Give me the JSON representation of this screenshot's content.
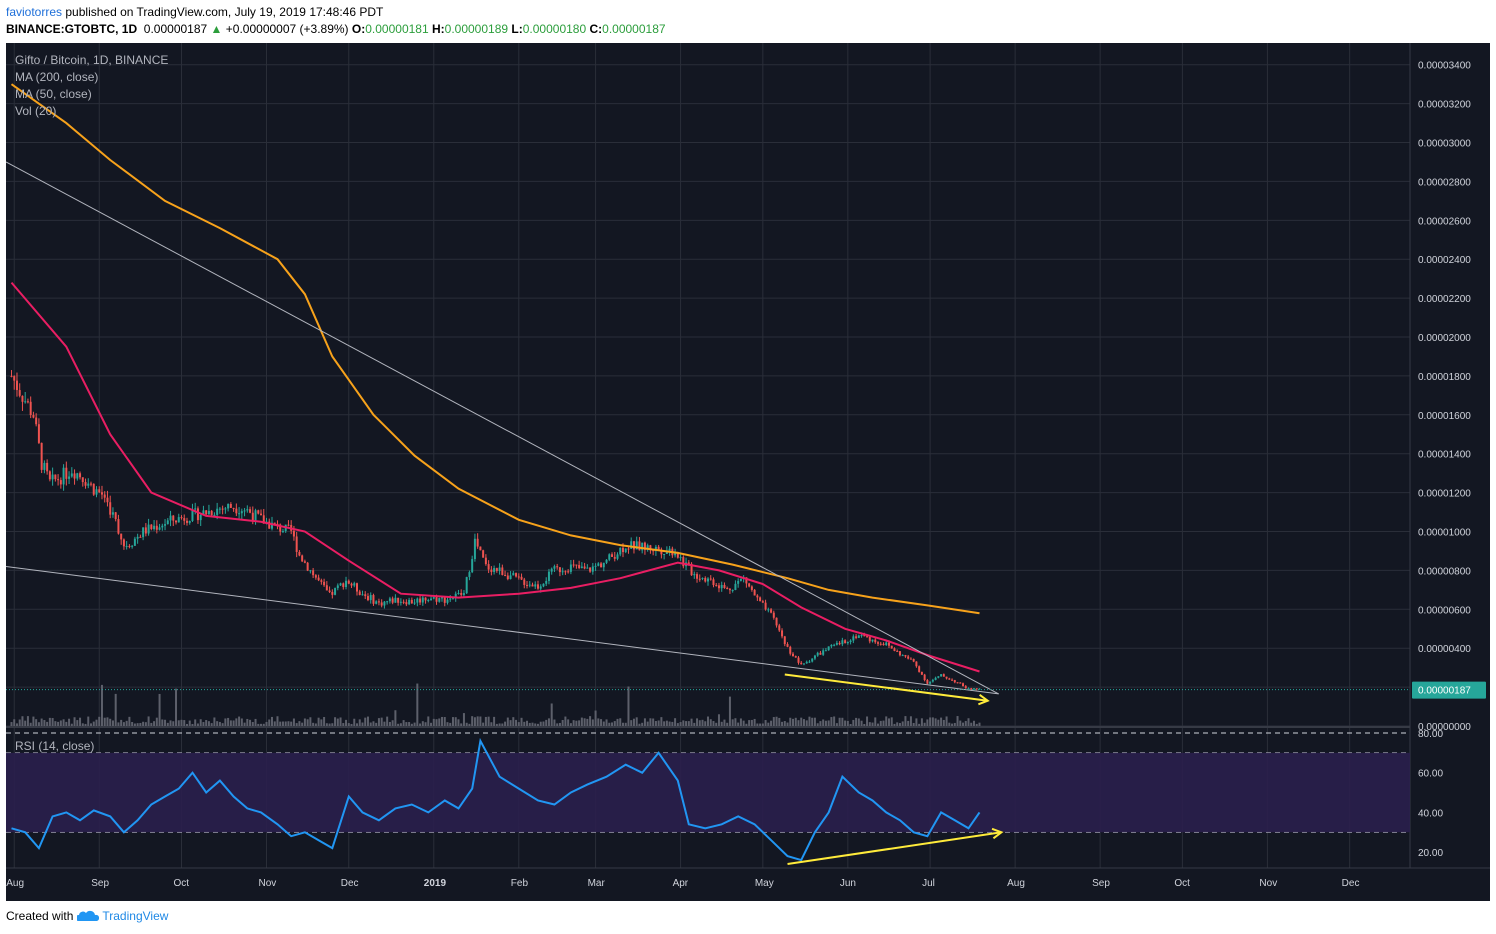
{
  "header": {
    "username": "faviotorres",
    "published_text": "published on TradingView.com, July 19, 2019 17:48:46 PDT",
    "symbol": "BINANCE:GTOBTC, 1D",
    "last": "0.00000187",
    "change": "+0.00000007 (+3.89%)",
    "o_label": "O:",
    "o": "0.00000181",
    "h_label": "H:",
    "h": "0.00000189",
    "l_label": "L:",
    "l": "0.00000180",
    "c_label": "C:",
    "c": "0.00000187"
  },
  "legend": {
    "title": "Gifto / Bitcoin, 1D, BINANCE",
    "ma200": "MA (200, close)",
    "ma50": "MA (50, close)",
    "vol": "Vol (20)",
    "rsi": "RSI (14, close)"
  },
  "footer": {
    "created_with": "Created with",
    "brand": "TradingView"
  },
  "colors": {
    "background": "#131722",
    "grid": "#2a2e39",
    "ma200": "#f7a21b",
    "ma50": "#e91e63",
    "rsi": "#2196f3",
    "rsi_band": "#2a1f4d",
    "trendline": "#b2b5be",
    "annotation": "#ffeb3b",
    "price_tag": "#26a69a",
    "up": "#26a69a",
    "down": "#ef5350"
  },
  "chart_data": [
    {
      "type": "line",
      "title": "Gifto / Bitcoin, 1D, BINANCE",
      "y_ticks": [
        "0.00003400",
        "0.00003200",
        "0.00003000",
        "0.00002800",
        "0.00002600",
        "0.00002400",
        "0.00002200",
        "0.00002000",
        "0.00001800",
        "0.00001600",
        "0.00001400",
        "0.00001200",
        "0.00001000",
        "0.00000800",
        "0.00000600",
        "0.00000400",
        "0.00000200",
        "0.00000000"
      ],
      "x_ticks": [
        "Aug",
        "Sep",
        "Oct",
        "Nov",
        "Dec",
        "2019",
        "Feb",
        "Mar",
        "Apr",
        "May",
        "Jun",
        "Jul",
        "Aug",
        "Sep",
        "Oct",
        "Nov",
        "Dec"
      ],
      "ylim": [
        0,
        3.45e-05
      ],
      "last_price_tag": "0.00000187",
      "series": [
        {
          "name": "Price (close)",
          "x": [
            "2018-07-31",
            "2018-08-04",
            "2018-08-08",
            "2018-08-11",
            "2018-08-14",
            "2018-08-18",
            "2018-08-22",
            "2018-08-26",
            "2018-08-30",
            "2018-09-03",
            "2018-09-07",
            "2018-09-10",
            "2018-09-13",
            "2018-09-17",
            "2018-09-22",
            "2018-09-28",
            "2018-10-04",
            "2018-10-10",
            "2018-10-15",
            "2018-10-20",
            "2018-10-25",
            "2018-10-30",
            "2018-11-05",
            "2018-11-10",
            "2018-11-13",
            "2018-11-18",
            "2018-11-24",
            "2018-11-30",
            "2018-12-06",
            "2018-12-12",
            "2018-12-18",
            "2018-12-24",
            "2018-12-30",
            "2019-01-05",
            "2019-01-12",
            "2019-01-16",
            "2019-01-20",
            "2019-01-25",
            "2019-02-01",
            "2019-02-08",
            "2019-02-14",
            "2019-02-20",
            "2019-02-26",
            "2019-03-05",
            "2019-03-12",
            "2019-03-18",
            "2019-03-24",
            "2019-03-30",
            "2019-04-02",
            "2019-04-06",
            "2019-04-12",
            "2019-04-18",
            "2019-04-24",
            "2019-04-29",
            "2019-05-05",
            "2019-05-10",
            "2019-05-15",
            "2019-05-20",
            "2019-05-25",
            "2019-05-30",
            "2019-06-05",
            "2019-06-10",
            "2019-06-15",
            "2019-06-20",
            "2019-06-25",
            "2019-06-30",
            "2019-07-05",
            "2019-07-10",
            "2019-07-15",
            "2019-07-19"
          ],
          "values": [
            1.8e-05,
            1.7e-05,
            1.6e-05,
            1.35e-05,
            1.25e-05,
            1.28e-05,
            1.32e-05,
            1.28e-05,
            1.22e-05,
            1.18e-05,
            1.05e-05,
            9.3e-06,
            9.5e-06,
            1e-05,
            1.03e-05,
            1.06e-05,
            1.08e-05,
            1.1e-05,
            1.12e-05,
            1.13e-05,
            1.11e-05,
            1.06e-05,
            1.02e-05,
            1e-05,
            8.8e-06,
            7.8e-06,
            6.7e-06,
            7.5e-06,
            6.8e-06,
            6.3e-06,
            6.5e-06,
            6.4e-06,
            6.6e-06,
            6.5e-06,
            6.8e-06,
            9.5e-06,
            8.2e-06,
            8e-06,
            7.5e-06,
            7.2e-06,
            8e-06,
            8.2e-06,
            8e-06,
            8.5e-06,
            9.3e-06,
            9.2e-06,
            9.1e-06,
            9e-06,
            8.4e-06,
            7.8e-06,
            7.5e-06,
            7e-06,
            7.6e-06,
            6.5e-06,
            5.5e-06,
            4e-06,
            3.1e-06,
            3.6e-06,
            4e-06,
            4.3e-06,
            4.7e-06,
            4.4e-06,
            4.2e-06,
            3.7e-06,
            3.3e-06,
            2.2e-06,
            2.6e-06,
            2.3e-06,
            1.9e-06,
            1.9e-06
          ]
        },
        {
          "name": "MA (200, close)",
          "x": [
            "2018-07-31",
            "2018-08-20",
            "2018-09-05",
            "2018-09-25",
            "2018-10-15",
            "2018-11-05",
            "2018-11-15",
            "2018-11-25",
            "2018-12-10",
            "2018-12-25",
            "2019-01-10",
            "2019-02-01",
            "2019-02-20",
            "2019-03-10",
            "2019-03-31",
            "2019-04-20",
            "2019-05-10",
            "2019-05-25",
            "2019-06-10",
            "2019-06-30",
            "2019-07-19"
          ],
          "values": [
            3.3e-05,
            3.1e-05,
            2.91e-05,
            2.7e-05,
            2.56e-05,
            2.4e-05,
            2.22e-05,
            1.9e-05,
            1.6e-05,
            1.39e-05,
            1.22e-05,
            1.06e-05,
            9.8e-06,
            9.3e-06,
            8.9e-06,
            8.3e-06,
            7.6e-06,
            7e-06,
            6.6e-06,
            6.2e-06,
            5.8e-06
          ]
        },
        {
          "name": "MA (50, close)",
          "x": [
            "2018-07-31",
            "2018-08-20",
            "2018-09-05",
            "2018-09-20",
            "2018-10-10",
            "2018-10-30",
            "2018-11-15",
            "2018-12-01",
            "2018-12-20",
            "2019-01-10",
            "2019-02-01",
            "2019-02-20",
            "2019-03-10",
            "2019-03-31",
            "2019-04-15",
            "2019-05-01",
            "2019-05-15",
            "2019-05-31",
            "2019-06-15",
            "2019-07-01",
            "2019-07-19"
          ],
          "values": [
            2.28e-05,
            1.95e-05,
            1.5e-05,
            1.2e-05,
            1.08e-05,
            1.05e-05,
            1e-05,
            8.5e-06,
            6.8e-06,
            6.6e-06,
            6.8e-06,
            7.1e-06,
            7.6e-06,
            8.4e-06,
            8e-06,
            7.3e-06,
            6.1e-06,
            5e-06,
            4.4e-06,
            3.6e-06,
            2.8e-06
          ]
        }
      ]
    },
    {
      "type": "line",
      "title": "RSI (14, close)",
      "y_ticks": [
        "80.00",
        "60.00",
        "40.00",
        "20.00"
      ],
      "ylim": [
        12,
        82
      ],
      "bands": [
        30,
        70
      ],
      "series": [
        {
          "name": "RSI (14, close)",
          "x": [
            "2018-07-31",
            "2018-08-05",
            "2018-08-10",
            "2018-08-15",
            "2018-08-20",
            "2018-08-25",
            "2018-08-30",
            "2018-09-05",
            "2018-09-10",
            "2018-09-15",
            "2018-09-20",
            "2018-09-25",
            "2018-09-30",
            "2018-10-05",
            "2018-10-10",
            "2018-10-15",
            "2018-10-20",
            "2018-10-25",
            "2018-10-30",
            "2018-11-05",
            "2018-11-10",
            "2018-11-15",
            "2018-11-20",
            "2018-11-25",
            "2018-12-01",
            "2018-12-06",
            "2018-12-12",
            "2018-12-18",
            "2018-12-24",
            "2018-12-30",
            "2019-01-05",
            "2019-01-10",
            "2019-01-15",
            "2019-01-18",
            "2019-01-25",
            "2019-02-01",
            "2019-02-08",
            "2019-02-14",
            "2019-02-20",
            "2019-02-26",
            "2019-03-05",
            "2019-03-12",
            "2019-03-18",
            "2019-03-24",
            "2019-03-31",
            "2019-04-04",
            "2019-04-10",
            "2019-04-16",
            "2019-04-22",
            "2019-04-28",
            "2019-05-04",
            "2019-05-10",
            "2019-05-15",
            "2019-05-20",
            "2019-05-25",
            "2019-05-30",
            "2019-06-05",
            "2019-06-10",
            "2019-06-15",
            "2019-06-20",
            "2019-06-25",
            "2019-06-30",
            "2019-07-05",
            "2019-07-10",
            "2019-07-15",
            "2019-07-19"
          ],
          "values": [
            32,
            30,
            22,
            38,
            40,
            36,
            41,
            38,
            30,
            36,
            44,
            48,
            52,
            60,
            50,
            56,
            48,
            42,
            40,
            34,
            28,
            30,
            26,
            22,
            48,
            40,
            36,
            42,
            44,
            40,
            46,
            42,
            52,
            76,
            58,
            52,
            46,
            44,
            50,
            54,
            58,
            64,
            60,
            70,
            56,
            34,
            32,
            34,
            38,
            34,
            26,
            18,
            16,
            30,
            40,
            58,
            50,
            46,
            40,
            36,
            30,
            28,
            40,
            36,
            32,
            40
          ]
        }
      ]
    }
  ]
}
